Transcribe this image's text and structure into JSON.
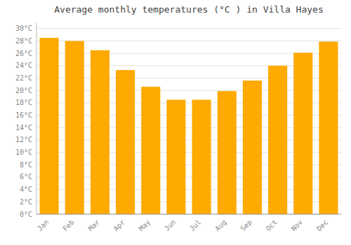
{
  "chart_data": {
    "type": "bar",
    "title": "Average monthly temperatures (°C ) in Villa Hayes",
    "categories": [
      "Jan",
      "Feb",
      "Mar",
      "Apr",
      "May",
      "Jun",
      "Jul",
      "Aug",
      "Sep",
      "Oct",
      "Nov",
      "Dec"
    ],
    "values": [
      28.5,
      28.0,
      26.5,
      23.3,
      20.6,
      18.5,
      18.5,
      19.9,
      21.6,
      24.0,
      26.1,
      27.9
    ],
    "color": "#FFAA00",
    "ylim": [
      0,
      31
    ],
    "yticks": [
      {
        "value": 0,
        "label": "0°C"
      },
      {
        "value": 2,
        "label": "2°C"
      },
      {
        "value": 4,
        "label": "4°C"
      },
      {
        "value": 6,
        "label": "6°C"
      },
      {
        "value": 8,
        "label": "8°C"
      },
      {
        "value": 10,
        "label": "10°C"
      },
      {
        "value": 12,
        "label": "12°C"
      },
      {
        "value": 14,
        "label": "14°C"
      },
      {
        "value": 16,
        "label": "16°C"
      },
      {
        "value": 18,
        "label": "18°C"
      },
      {
        "value": 20,
        "label": "20°C"
      },
      {
        "value": 22,
        "label": "22°C"
      },
      {
        "value": 24,
        "label": "24°C"
      },
      {
        "value": 26,
        "label": "26°C"
      },
      {
        "value": 28,
        "label": "28°C"
      },
      {
        "value": 30,
        "label": "30°C"
      }
    ],
    "grid": true
  }
}
